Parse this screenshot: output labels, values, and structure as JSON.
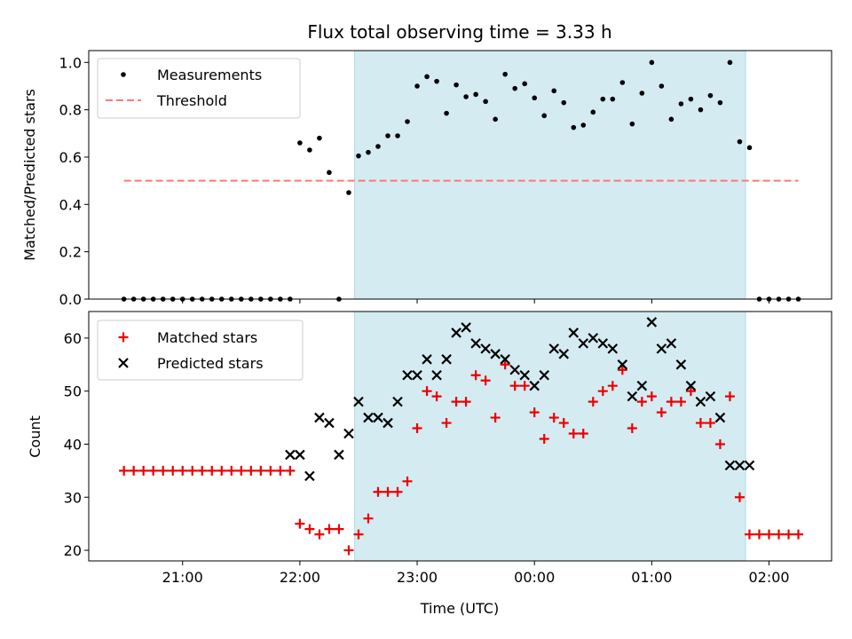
{
  "figure": {
    "title": "Flux total observing time = 3.33 h",
    "xlabel": "Time (UTC)",
    "shaded_interval": [
      "22:28",
      "01:48"
    ],
    "colors": {
      "shade": "#d4ebf2",
      "shade_edge": "#b3dde7",
      "threshold": "#ff7777",
      "matched": "#ee0000",
      "predicted": "#000000",
      "measurements": "#000000"
    }
  },
  "chart_data": [
    {
      "type": "scatter",
      "ylabel": "Matched/Predicted stars",
      "xlim": [
        "20:12",
        "02:32"
      ],
      "ylim": [
        0,
        1.05
      ],
      "yticks": [
        "0.0",
        "0.2",
        "0.4",
        "0.6",
        "0.8",
        "1.0"
      ],
      "legend": {
        "placement": "upper-left",
        "entries": [
          "Measurements",
          "Threshold"
        ]
      },
      "threshold": {
        "name": "Threshold",
        "y": 0.5,
        "x": [
          "20:30",
          "02:15"
        ]
      },
      "series": [
        {
          "name": "Measurements",
          "x": [
            "20:30",
            "20:35",
            "20:40",
            "20:45",
            "20:50",
            "20:55",
            "21:00",
            "21:05",
            "21:10",
            "21:15",
            "21:20",
            "21:25",
            "21:30",
            "21:35",
            "21:40",
            "21:45",
            "21:50",
            "21:55",
            "22:00",
            "22:05",
            "22:10",
            "22:15",
            "22:20",
            "22:25",
            "22:30",
            "22:35",
            "22:40",
            "22:45",
            "22:50",
            "22:55",
            "23:00",
            "23:05",
            "23:10",
            "23:15",
            "23:20",
            "23:25",
            "23:30",
            "23:35",
            "23:40",
            "23:45",
            "23:50",
            "23:55",
            "00:00",
            "00:05",
            "00:10",
            "00:15",
            "00:20",
            "00:25",
            "00:30",
            "00:35",
            "00:40",
            "00:45",
            "00:50",
            "00:55",
            "01:00",
            "01:05",
            "01:10",
            "01:15",
            "01:20",
            "01:25",
            "01:30",
            "01:35",
            "01:40",
            "01:45",
            "01:50",
            "01:55",
            "02:00",
            "02:05",
            "02:10",
            "02:15"
          ],
          "y": [
            0,
            0,
            0,
            0,
            0,
            0,
            0,
            0,
            0,
            0,
            0,
            0,
            0,
            0,
            0,
            0,
            0,
            0,
            0.66,
            0.63,
            0.68,
            0.535,
            0,
            0.45,
            0.605,
            0.62,
            0.645,
            0.69,
            0.69,
            0.75,
            0.9,
            0.94,
            0.92,
            0.785,
            0.905,
            0.855,
            0.865,
            0.835,
            0.76,
            0.95,
            0.89,
            0.91,
            0.85,
            0.775,
            0.88,
            0.83,
            0.725,
            0.735,
            0.79,
            0.845,
            0.845,
            0.915,
            0.74,
            0.87,
            1.0,
            0.9,
            0.76,
            0.825,
            0.845,
            0.8,
            0.86,
            0.83,
            1.0,
            0.665,
            0.64,
            0,
            0,
            0,
            0,
            0
          ]
        }
      ]
    },
    {
      "type": "scatter",
      "ylabel": "Count",
      "xlim": [
        "20:12",
        "02:32"
      ],
      "ylim": [
        18,
        65
      ],
      "yticks": [
        "20",
        "30",
        "40",
        "50",
        "60"
      ],
      "xticks": [
        "21:00",
        "22:00",
        "23:00",
        "00:00",
        "01:00",
        "02:00"
      ],
      "legend": {
        "placement": "upper-left",
        "entries": [
          "Matched stars",
          "Predicted stars"
        ]
      },
      "series": [
        {
          "name": "Matched stars",
          "x": [
            "20:30",
            "20:35",
            "20:40",
            "20:45",
            "20:50",
            "20:55",
            "21:00",
            "21:05",
            "21:10",
            "21:15",
            "21:20",
            "21:25",
            "21:30",
            "21:35",
            "21:40",
            "21:45",
            "21:50",
            "21:55",
            "22:00",
            "22:05",
            "22:10",
            "22:15",
            "22:20",
            "22:25",
            "22:30",
            "22:35",
            "22:40",
            "22:45",
            "22:50",
            "22:55",
            "23:00",
            "23:05",
            "23:10",
            "23:15",
            "23:20",
            "23:25",
            "23:30",
            "23:35",
            "23:40",
            "23:45",
            "23:50",
            "23:55",
            "00:00",
            "00:05",
            "00:10",
            "00:15",
            "00:20",
            "00:25",
            "00:30",
            "00:35",
            "00:40",
            "00:45",
            "00:50",
            "00:55",
            "01:00",
            "01:05",
            "01:10",
            "01:15",
            "01:20",
            "01:25",
            "01:30",
            "01:35",
            "01:40",
            "01:45",
            "01:50",
            "01:55",
            "02:00",
            "02:05",
            "02:10",
            "02:15"
          ],
          "y": [
            35,
            35,
            35,
            35,
            35,
            35,
            35,
            35,
            35,
            35,
            35,
            35,
            35,
            35,
            35,
            35,
            35,
            35,
            25,
            24,
            23,
            24,
            24,
            20,
            23,
            26,
            31,
            31,
            31,
            33,
            43,
            50,
            49,
            44,
            48,
            48,
            53,
            52,
            45,
            55,
            51,
            51,
            46,
            41,
            45,
            44,
            42,
            42,
            48,
            50,
            51,
            54,
            43,
            48,
            49,
            46,
            48,
            48,
            50,
            44,
            44,
            40,
            49,
            30,
            23,
            23,
            23,
            23,
            23,
            23
          ]
        },
        {
          "name": "Predicted stars",
          "x": [
            "21:55",
            "22:00",
            "22:05",
            "22:10",
            "22:15",
            "22:20",
            "22:25",
            "22:30",
            "22:35",
            "22:40",
            "22:45",
            "22:50",
            "22:55",
            "23:00",
            "23:05",
            "23:10",
            "23:15",
            "23:20",
            "23:25",
            "23:30",
            "23:35",
            "23:40",
            "23:45",
            "23:50",
            "23:55",
            "00:00",
            "00:05",
            "00:10",
            "00:15",
            "00:20",
            "00:25",
            "00:30",
            "00:35",
            "00:40",
            "00:45",
            "00:50",
            "00:55",
            "01:00",
            "01:05",
            "01:10",
            "01:15",
            "01:20",
            "01:25",
            "01:30",
            "01:35",
            "01:40",
            "01:45",
            "01:50"
          ],
          "y": [
            38,
            38,
            34,
            45,
            44,
            38,
            42,
            48,
            45,
            45,
            44,
            48,
            53,
            53,
            56,
            53,
            56,
            61,
            62,
            59,
            58,
            57,
            56,
            54,
            53,
            51,
            53,
            58,
            57,
            61,
            59,
            60,
            59,
            58,
            55,
            49,
            51,
            63,
            58,
            59,
            55,
            51,
            48,
            49,
            45,
            36,
            36,
            36
          ]
        }
      ]
    }
  ]
}
